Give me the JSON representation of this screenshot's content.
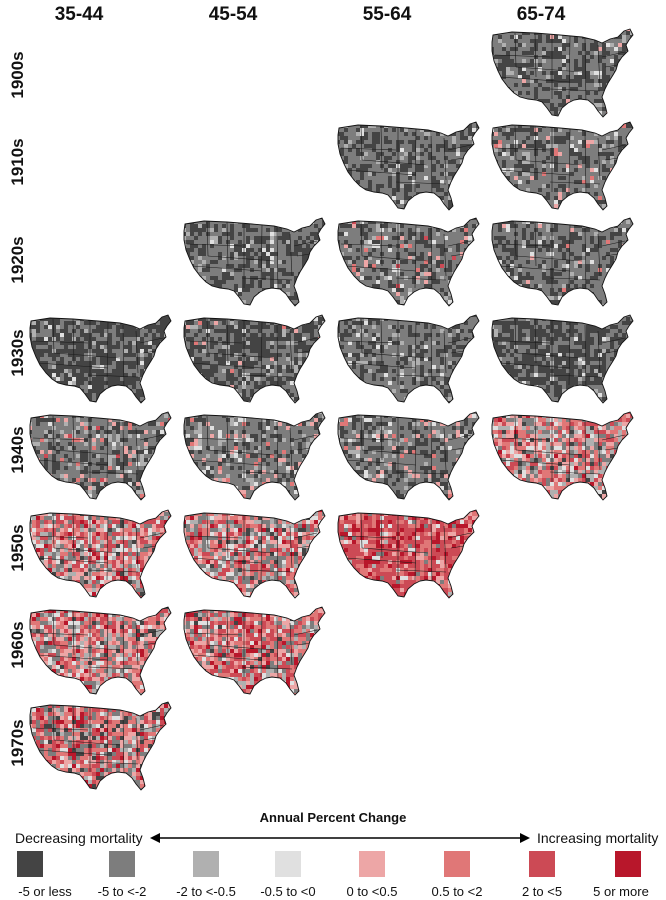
{
  "columns": [
    "35-44",
    "45-54",
    "55-64",
    "65-74"
  ],
  "rows": [
    "1900s",
    "1910s",
    "1920s",
    "1930s",
    "1940s",
    "1950s",
    "1960s",
    "1970s"
  ],
  "maps": [
    {
      "row": 0,
      "col": 3,
      "mix": [
        0.35,
        0.55,
        0.06,
        0.02,
        0.02,
        0.0,
        0.0,
        0.0
      ]
    },
    {
      "row": 1,
      "col": 2,
      "mix": [
        0.35,
        0.55,
        0.08,
        0.02,
        0.0,
        0.0,
        0.0,
        0.0
      ]
    },
    {
      "row": 1,
      "col": 3,
      "mix": [
        0.25,
        0.6,
        0.07,
        0.03,
        0.03,
        0.02,
        0.0,
        0.0
      ]
    },
    {
      "row": 2,
      "col": 1,
      "mix": [
        0.35,
        0.55,
        0.07,
        0.03,
        0.0,
        0.0,
        0.0,
        0.0
      ]
    },
    {
      "row": 2,
      "col": 2,
      "mix": [
        0.25,
        0.55,
        0.08,
        0.04,
        0.04,
        0.03,
        0.01,
        0.0
      ]
    },
    {
      "row": 2,
      "col": 3,
      "mix": [
        0.3,
        0.58,
        0.06,
        0.03,
        0.02,
        0.01,
        0.0,
        0.0
      ]
    },
    {
      "row": 3,
      "col": 0,
      "mix": [
        0.6,
        0.33,
        0.05,
        0.02,
        0.0,
        0.0,
        0.0,
        0.0
      ]
    },
    {
      "row": 3,
      "col": 1,
      "mix": [
        0.5,
        0.38,
        0.06,
        0.03,
        0.02,
        0.01,
        0.0,
        0.0
      ]
    },
    {
      "row": 3,
      "col": 2,
      "mix": [
        0.3,
        0.58,
        0.08,
        0.04,
        0.0,
        0.0,
        0.0,
        0.0
      ]
    },
    {
      "row": 3,
      "col": 3,
      "mix": [
        0.55,
        0.38,
        0.05,
        0.02,
        0.0,
        0.0,
        0.0,
        0.0
      ]
    },
    {
      "row": 4,
      "col": 0,
      "mix": [
        0.25,
        0.5,
        0.1,
        0.05,
        0.05,
        0.04,
        0.01,
        0.0
      ]
    },
    {
      "row": 4,
      "col": 1,
      "mix": [
        0.2,
        0.55,
        0.12,
        0.06,
        0.04,
        0.03,
        0.0,
        0.0
      ]
    },
    {
      "row": 4,
      "col": 2,
      "mix": [
        0.25,
        0.55,
        0.1,
        0.05,
        0.03,
        0.02,
        0.0,
        0.0
      ]
    },
    {
      "row": 4,
      "col": 3,
      "mix": [
        0.05,
        0.15,
        0.1,
        0.1,
        0.2,
        0.25,
        0.13,
        0.02
      ]
    },
    {
      "row": 5,
      "col": 0,
      "mix": [
        0.03,
        0.15,
        0.12,
        0.1,
        0.15,
        0.2,
        0.2,
        0.05
      ]
    },
    {
      "row": 5,
      "col": 1,
      "mix": [
        0.05,
        0.18,
        0.12,
        0.1,
        0.15,
        0.2,
        0.16,
        0.04
      ]
    },
    {
      "row": 5,
      "col": 2,
      "mix": [
        0.0,
        0.03,
        0.03,
        0.04,
        0.08,
        0.2,
        0.45,
        0.17
      ]
    },
    {
      "row": 6,
      "col": 0,
      "mix": [
        0.03,
        0.15,
        0.12,
        0.1,
        0.15,
        0.22,
        0.18,
        0.05
      ]
    },
    {
      "row": 6,
      "col": 1,
      "mix": [
        0.02,
        0.12,
        0.1,
        0.1,
        0.16,
        0.24,
        0.2,
        0.06
      ]
    },
    {
      "row": 7,
      "col": 0,
      "mix": [
        0.1,
        0.18,
        0.08,
        0.06,
        0.12,
        0.2,
        0.2,
        0.06
      ]
    }
  ],
  "legend": {
    "title": "Annual Percent Change",
    "left_label": "Decreasing mortality",
    "right_label": "Increasing mortality",
    "items": [
      {
        "label": "-5 or less",
        "color": "#444444"
      },
      {
        "label": "-5 to <-2",
        "color": "#7d7d7d"
      },
      {
        "label": "-2 to <-0.5",
        "color": "#b0b0b0"
      },
      {
        "label": "-0.5 to <0",
        "color": "#e0e0e0"
      },
      {
        "label": "0 to <0.5",
        "color": "#eda6a6"
      },
      {
        "label": "0.5 to <2",
        "color": "#e07777"
      },
      {
        "label": "2 to <5",
        "color": "#cc4a55"
      },
      {
        "label": "5 or more",
        "color": "#b8172b"
      }
    ]
  }
}
